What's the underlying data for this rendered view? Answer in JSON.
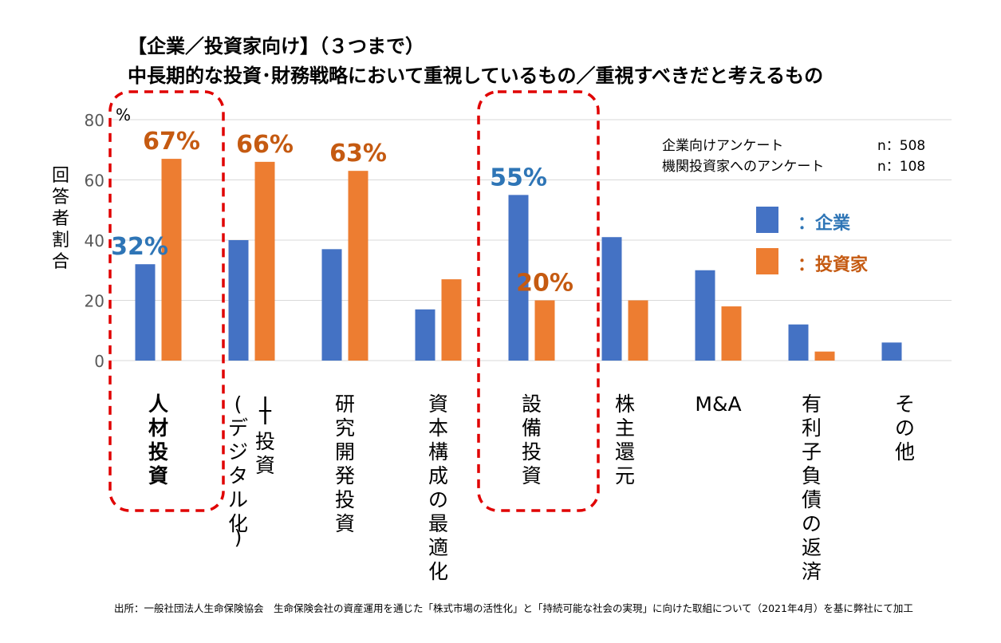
{
  "title_line1": "【企業／投資家向け】（３つまで）",
  "title_line2": "中長期的な投資･財務戦略において重視しているもの／重視すべきだと考えるもの",
  "survey_note": {
    "row1_label": "企業向けアンケート",
    "row1_n": "n：508",
    "row2_label": "機関投資家へのアンケート",
    "row2_n": "n：108"
  },
  "source": "出所：一般社団法人生命保険協会　生命保険会社の資産運用を通じた「株式市場の活性化」と「持続可能な社会の実現」に向けた取組について（2021年4月）を基に弊社にて加工",
  "colors": {
    "company": "#4472C4",
    "investor": "#ED7D31",
    "company_label": "#2E75B6",
    "investor_label": "#C55A11",
    "highlight": "#E00000",
    "grid": "#D9D9D9"
  },
  "chart_data": {
    "type": "bar",
    "ylabel": "回答者割合",
    "yunit": "%",
    "ylim": [
      0,
      80
    ],
    "yticks": [
      0,
      20,
      40,
      60,
      80
    ],
    "grid": true,
    "legend_position": "right",
    "categories": [
      "人材投資",
      "IT投資(デジタル化)",
      "研究開発投資",
      "資本構成の最適化",
      "設備投資",
      "株主還元",
      "M&A",
      "有利子負債の返済",
      "その他"
    ],
    "series": [
      {
        "name": "：企業",
        "values": [
          32,
          40,
          37,
          17,
          55,
          41,
          30,
          12,
          6
        ]
      },
      {
        "name": "：投資家",
        "values": [
          67,
          66,
          63,
          27,
          20,
          20,
          18,
          3,
          0
        ]
      }
    ],
    "data_labels": [
      {
        "category": "人材投資",
        "series": "：企業",
        "text": "32%"
      },
      {
        "category": "人材投資",
        "series": "：投資家",
        "text": "67%"
      },
      {
        "category": "IT投資(デジタル化)",
        "series": "：投資家",
        "text": "66%"
      },
      {
        "category": "研究開発投資",
        "series": "：投資家",
        "text": "63%"
      },
      {
        "category": "設備投資",
        "series": "：企業",
        "text": "55%"
      },
      {
        "category": "設備投資",
        "series": "：投資家",
        "text": "20%"
      }
    ],
    "highlighted_categories": [
      "人材投資",
      "設備投資"
    ]
  }
}
